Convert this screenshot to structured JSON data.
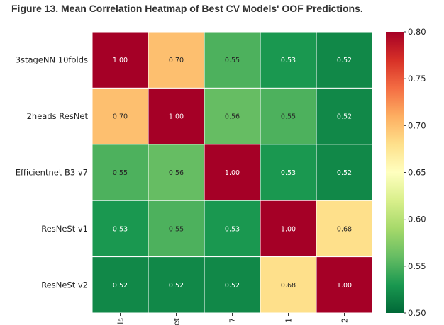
{
  "figure_title": "Figure 13. Mean Correlation Heatmap of Best CV Models' OOF Predictions.",
  "chart_data": {
    "type": "heatmap",
    "title": "",
    "rows": [
      "3stageNN 10folds",
      "2heads ResNet",
      "Efficientnet B3 v7",
      "ResNeSt v1",
      "ResNeSt v2"
    ],
    "columns": [
      "ls",
      "et",
      "7",
      "1",
      "2"
    ],
    "values": [
      [
        1.0,
        0.7,
        0.55,
        0.53,
        0.52
      ],
      [
        0.7,
        1.0,
        0.56,
        0.55,
        0.52
      ],
      [
        0.55,
        0.56,
        1.0,
        0.53,
        0.52
      ],
      [
        0.53,
        0.55,
        0.53,
        1.0,
        0.68
      ],
      [
        0.52,
        0.52,
        0.52,
        0.68,
        1.0
      ]
    ],
    "value_labels": [
      [
        "1.00",
        "0.70",
        "0.55",
        "0.53",
        "0.52"
      ],
      [
        "0.70",
        "1.00",
        "0.56",
        "0.55",
        "0.52"
      ],
      [
        "0.55",
        "0.56",
        "1.00",
        "0.53",
        "0.52"
      ],
      [
        "0.53",
        "0.55",
        "0.53",
        "1.00",
        "0.68"
      ],
      [
        "0.52",
        "0.52",
        "0.52",
        "0.68",
        "1.00"
      ]
    ],
    "colormap": "RdYlGn_r",
    "vmin": 0.5,
    "vmax": 0.8,
    "colorbar_ticks": [
      "0.50",
      "0.55",
      "0.60",
      "0.65",
      "0.70",
      "0.75",
      "0.80"
    ],
    "colorbar_position": "right"
  }
}
